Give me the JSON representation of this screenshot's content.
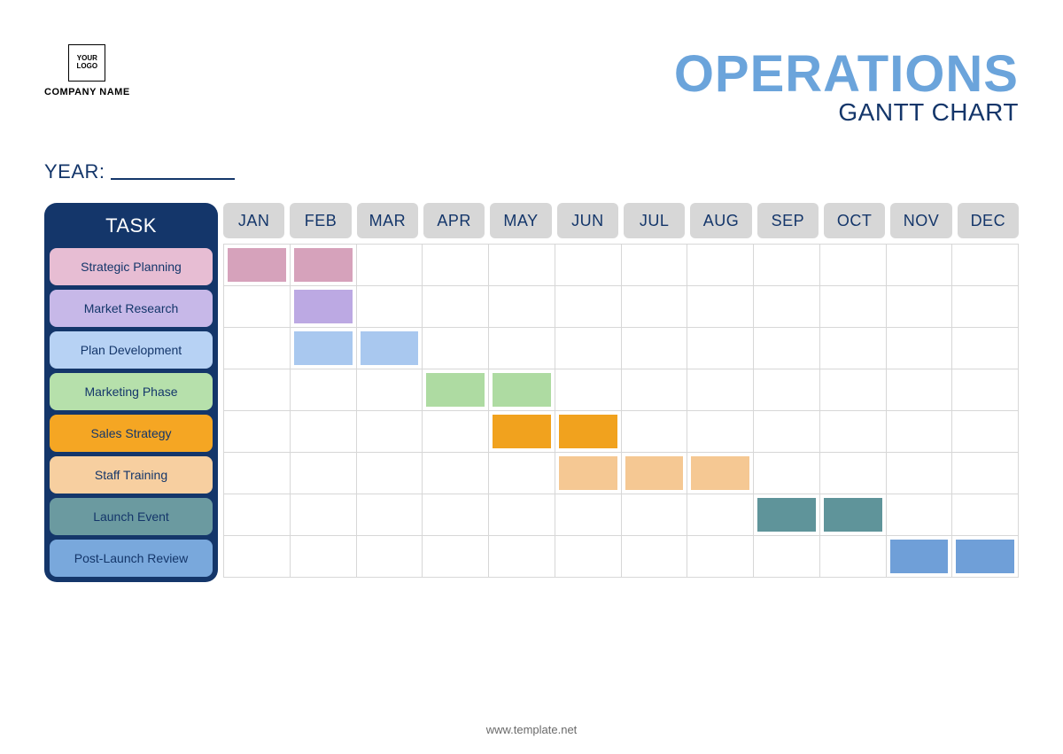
{
  "colors": {
    "navy": "#14366a",
    "light_blue": "#6ba4db",
    "month_bg": "#d7d7d7",
    "month_text": "#14366a",
    "grid_line": "#d7d7d7",
    "background": "#ffffff",
    "footer_text": "#6a6a6a"
  },
  "logo": {
    "text": "YOUR LOGO",
    "company": "COMPANY NAME"
  },
  "title": {
    "main": "OPERATIONS",
    "sub": "GANTT CHART"
  },
  "year_label": "YEAR:",
  "task_header": "TASK",
  "months": [
    "JAN",
    "FEB",
    "MAR",
    "APR",
    "MAY",
    "JUN",
    "JUL",
    "AUG",
    "SEP",
    "OCT",
    "NOV",
    "DEC"
  ],
  "gantt": {
    "type": "gantt",
    "label_text_color": "#14366a",
    "tasks": [
      {
        "label": "Strategic Planning",
        "pill_color": "#e7bdd3",
        "bar_color": "#d6a2bb",
        "start": 1,
        "end": 2
      },
      {
        "label": "Market Research",
        "pill_color": "#c7b8e8",
        "bar_color": "#bca9e3",
        "start": 2,
        "end": 2
      },
      {
        "label": "Plan Development",
        "pill_color": "#b7d2f4",
        "bar_color": "#a9c8ef",
        "start": 2,
        "end": 3
      },
      {
        "label": "Marketing Phase",
        "pill_color": "#b6e0ab",
        "bar_color": "#aedba2",
        "start": 4,
        "end": 5
      },
      {
        "label": "Sales Strategy",
        "pill_color": "#f5a623",
        "bar_color": "#f1a21e",
        "start": 5,
        "end": 6
      },
      {
        "label": "Staff Training",
        "pill_color": "#f7cfa0",
        "bar_color": "#f5c893",
        "start": 6,
        "end": 8
      },
      {
        "label": "Launch Event",
        "pill_color": "#6b9aa0",
        "bar_color": "#5f949a",
        "start": 9,
        "end": 10
      },
      {
        "label": "Post-Launch Review",
        "pill_color": "#79a8dc",
        "bar_color": "#6f9fd8",
        "start": 11,
        "end": 12
      }
    ]
  },
  "footer": "www.template.net"
}
